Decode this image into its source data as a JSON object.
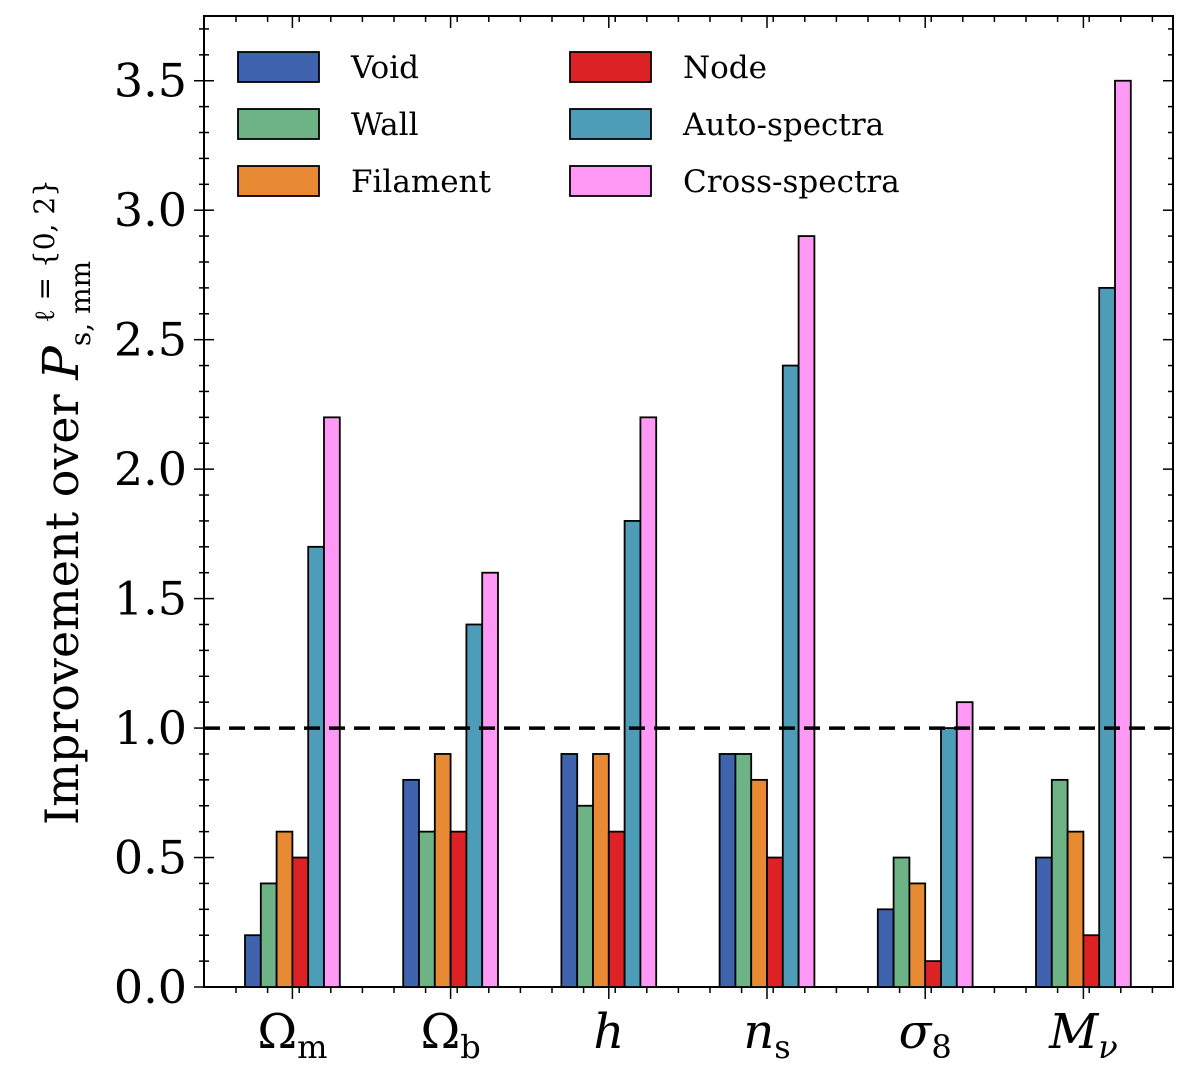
{
  "chart_data": {
    "type": "bar",
    "ylabel": "Improvement over P_{s,mm}^{ℓ={0,2}}",
    "ylabel_parts": {
      "main": "Improvement over ",
      "P": "P",
      "sub": "s, mm",
      "sup": "ℓ = {0, 2}"
    },
    "ylim": [
      0.0,
      3.75
    ],
    "yticks": [
      "0.0",
      "0.5",
      "1.0",
      "1.5",
      "2.0",
      "2.5",
      "3.0",
      "3.5"
    ],
    "ytick_values": [
      0.0,
      0.5,
      1.0,
      1.5,
      2.0,
      2.5,
      3.0,
      3.5
    ],
    "reference_line": 1.0,
    "categories": [
      {
        "main": "Ω",
        "sub": "m",
        "italic": false
      },
      {
        "main": "Ω",
        "sub": "b",
        "italic": false
      },
      {
        "main": "h",
        "sub": "",
        "italic": true
      },
      {
        "main": "n",
        "sub": "s",
        "italic": true
      },
      {
        "main": "σ",
        "sub": "8",
        "italic": true
      },
      {
        "main": "M",
        "sub": "ν",
        "italic": true
      }
    ],
    "series": [
      {
        "name": "Void",
        "color": "#4063b0",
        "values": [
          0.2,
          0.8,
          0.9,
          0.9,
          0.3,
          0.5
        ]
      },
      {
        "name": "Wall",
        "color": "#6db386",
        "values": [
          0.4,
          0.6,
          0.7,
          0.9,
          0.5,
          0.8
        ]
      },
      {
        "name": "Filament",
        "color": "#e88a34",
        "values": [
          0.6,
          0.9,
          0.9,
          0.8,
          0.4,
          0.6
        ]
      },
      {
        "name": "Node",
        "color": "#dd2226",
        "values": [
          0.5,
          0.6,
          0.6,
          0.5,
          0.1,
          0.2
        ]
      },
      {
        "name": "Auto-spectra",
        "color": "#4e9db8",
        "values": [
          1.7,
          1.4,
          1.8,
          2.4,
          1.0,
          2.7
        ]
      },
      {
        "name": "Cross-spectra",
        "color": "#ff99f5",
        "values": [
          2.2,
          1.6,
          2.2,
          2.9,
          1.1,
          3.5
        ]
      }
    ],
    "legend": {
      "placement": "top-left",
      "columns": 2
    },
    "grid": false
  }
}
